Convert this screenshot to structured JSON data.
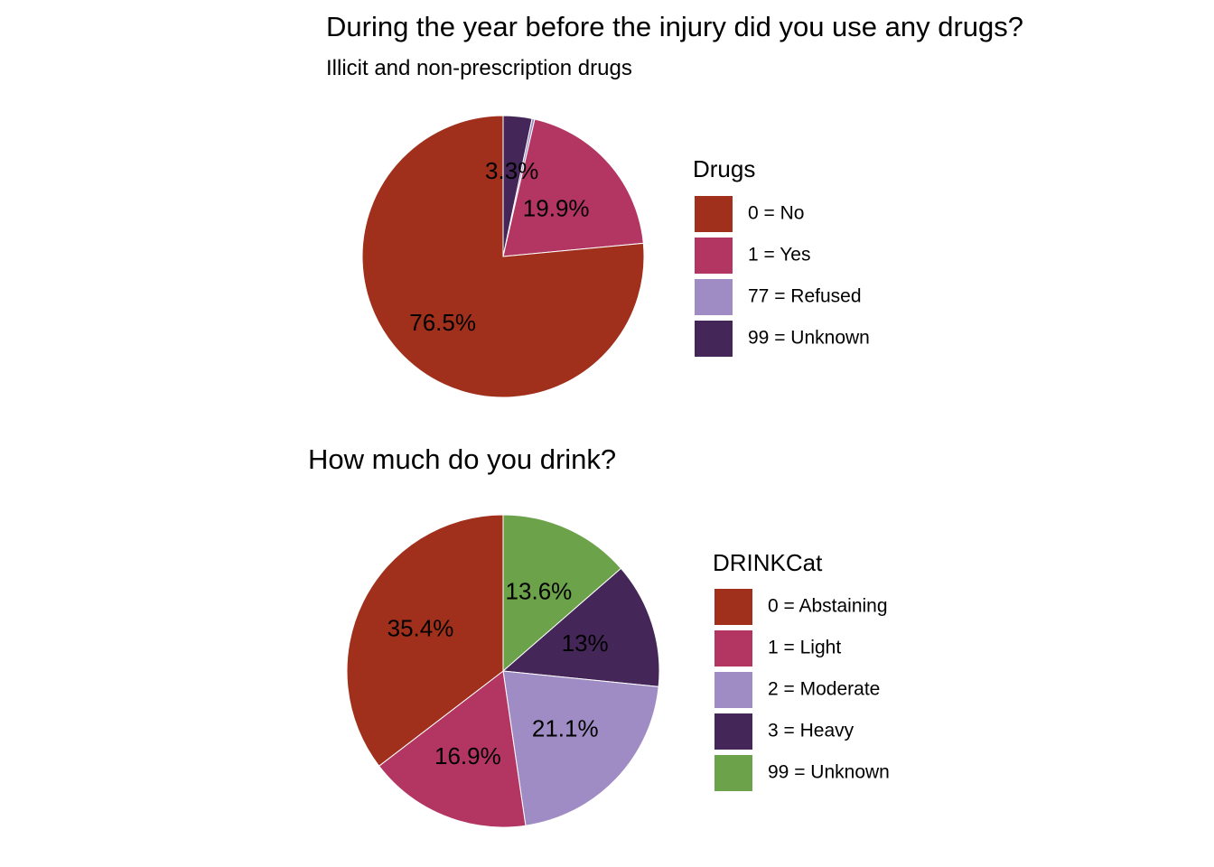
{
  "chart_data": [
    {
      "type": "pie",
      "title": "During the year before the injury did you use any drugs?",
      "subtitle": "Illicit and non-prescription drugs",
      "legend_title": "Drugs",
      "legend_position": "right",
      "categories": [
        "0 = No",
        "1 = Yes",
        "77 = Refused",
        "99 = Unknown"
      ],
      "values": [
        76.5,
        19.9,
        0.3,
        3.3
      ],
      "labels": [
        "76.5%",
        "19.9%",
        "",
        "3.3%"
      ],
      "colors": [
        "#A0301C",
        "#B23562",
        "#A08CC4",
        "#452658"
      ],
      "start": "12 o'clock",
      "direction": "clockwise",
      "slice_order": [
        3,
        2,
        1,
        0
      ]
    },
    {
      "type": "pie",
      "title": "How much do you drink?",
      "legend_title": "DRINKCat",
      "legend_position": "right",
      "categories": [
        "0 = Abstaining",
        "1 = Light",
        "2 = Moderate",
        "3 = Heavy",
        "99 = Unknown"
      ],
      "values": [
        35.4,
        16.9,
        21.1,
        13.0,
        13.6
      ],
      "labels": [
        "35.4%",
        "16.9%",
        "21.1%",
        "13%",
        "13.6%"
      ],
      "colors": [
        "#A0301C",
        "#B23562",
        "#A08CC4",
        "#452658",
        "#6BA24A"
      ],
      "start": "12 o'clock",
      "direction": "clockwise",
      "slice_order": [
        4,
        3,
        2,
        1,
        0
      ]
    }
  ]
}
